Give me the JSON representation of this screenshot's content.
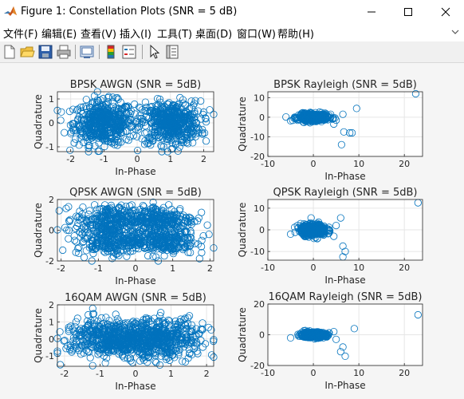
{
  "window": {
    "title": "Figure 1: Constellation Plots (SNR = 5 dB)",
    "controls": [
      "minimize",
      "maximize",
      "close"
    ]
  },
  "menubar": {
    "items": [
      "文件(F)",
      "编辑(E)",
      "查看(V)",
      "插入(I)",
      "工具(T)",
      "桌面(D)",
      "窗口(W)",
      "帮助(H)"
    ]
  },
  "toolbar": {
    "buttons": [
      "new-figure-icon",
      "open-file-icon",
      "save-icon",
      "print-icon",
      "link-plot-icon",
      "insert-colorbar-icon",
      "insert-legend-icon",
      "pointer-icon",
      "property-inspector-icon"
    ]
  },
  "colors": {
    "marker": "#0072bd",
    "axes_bg": "#ffffff",
    "figure_bg": "#f5f5f5",
    "grid": "#e6e6e6"
  },
  "chart_data": [
    {
      "type": "scatter",
      "title": "BPSK AWGN (SNR = 5dB)",
      "xlabel": "In-Phase",
      "ylabel": "Quadrature",
      "xlim": [
        -2.4,
        2.3
      ],
      "ylim": [
        -1.2,
        1.3
      ],
      "xticks": [
        -2,
        -1,
        0,
        1,
        2
      ],
      "yticks": [
        -1,
        0,
        1
      ],
      "grid": true,
      "clusters": [
        {
          "center": [
            -1,
            0
          ],
          "spread": [
            0.45,
            0.45
          ],
          "count": 500
        },
        {
          "center": [
            1,
            0
          ],
          "spread": [
            0.45,
            0.45
          ],
          "count": 500
        }
      ],
      "outliers": []
    },
    {
      "type": "scatter",
      "title": "BPSK Rayleigh (SNR = 5dB)",
      "xlabel": "In-Phase",
      "ylabel": "Quadrature",
      "xlim": [
        -10,
        24
      ],
      "ylim": [
        -20,
        13
      ],
      "xticks": [
        -10,
        0,
        10,
        20
      ],
      "yticks": [
        -20,
        -10,
        0,
        10
      ],
      "grid": true,
      "clusters": [
        {
          "center": [
            0,
            0
          ],
          "spread": [
            1.6,
            0.9
          ],
          "count": 400
        }
      ],
      "outliers": [
        [
          22.5,
          12
        ],
        [
          6.2,
          -14
        ],
        [
          8,
          -8
        ],
        [
          6.7,
          -7.5
        ],
        [
          9.5,
          4.5
        ],
        [
          8.5,
          -8
        ],
        [
          -5,
          -1.8
        ],
        [
          6.5,
          1.5
        ],
        [
          4.5,
          -3.5
        ],
        [
          5,
          -1.5
        ],
        [
          -3.5,
          -1
        ],
        [
          3.8,
          1.5
        ]
      ]
    },
    {
      "type": "scatter",
      "title": "QPSK AWGN (SNR = 5dB)",
      "xlabel": "In-Phase",
      "ylabel": "Quadrature",
      "xlim": [
        -2.1,
        2.1
      ],
      "ylim": [
        -2,
        2
      ],
      "xticks": [
        -2,
        -1,
        0,
        1,
        2
      ],
      "yticks": [
        -2,
        0,
        2
      ],
      "grid": true,
      "clusters": [
        {
          "center": [
            -0.7,
            0.7
          ],
          "spread": [
            0.45,
            0.45
          ],
          "count": 250
        },
        {
          "center": [
            0.7,
            0.7
          ],
          "spread": [
            0.45,
            0.45
          ],
          "count": 250
        },
        {
          "center": [
            -0.7,
            -0.7
          ],
          "spread": [
            0.45,
            0.45
          ],
          "count": 250
        },
        {
          "center": [
            0.7,
            -0.7
          ],
          "spread": [
            0.45,
            0.45
          ],
          "count": 250
        }
      ],
      "outliers": []
    },
    {
      "type": "scatter",
      "title": "QPSK Rayleigh (SNR = 5dB)",
      "xlabel": "In-Phase",
      "ylabel": "Quadrature",
      "xlim": [
        -10,
        24
      ],
      "ylim": [
        -14,
        14
      ],
      "xticks": [
        -10,
        0,
        10,
        20
      ],
      "yticks": [
        -10,
        0,
        10
      ],
      "grid": true,
      "clusters": [
        {
          "center": [
            0,
            0
          ],
          "spread": [
            1.4,
            1.3
          ],
          "count": 400
        }
      ],
      "outliers": [
        [
          23,
          12.5
        ],
        [
          6.5,
          -7.5
        ],
        [
          7,
          -10
        ],
        [
          6.5,
          -12.5
        ],
        [
          6,
          5.5
        ],
        [
          -0.5,
          5.5
        ],
        [
          5,
          2
        ],
        [
          -5,
          -2
        ],
        [
          4.5,
          -3
        ],
        [
          -3.5,
          2
        ]
      ]
    },
    {
      "type": "scatter",
      "title": "16QAM AWGN (SNR = 5dB)",
      "xlabel": "In-Phase",
      "ylabel": "Quadrature",
      "xlim": [
        -2.2,
        2.2
      ],
      "ylim": [
        -1.6,
        2
      ],
      "xticks": [
        -2,
        -1,
        0,
        1,
        2
      ],
      "yticks": [
        -1,
        0,
        1,
        2
      ],
      "grid": true,
      "clusters": [
        {
          "center": [
            -1,
            0.3
          ],
          "spread": [
            0.5,
            0.45
          ],
          "count": 120
        },
        {
          "center": [
            -0.3,
            0.3
          ],
          "spread": [
            0.5,
            0.45
          ],
          "count": 120
        },
        {
          "center": [
            0.3,
            0.3
          ],
          "spread": [
            0.5,
            0.45
          ],
          "count": 120
        },
        {
          "center": [
            1,
            0.3
          ],
          "spread": [
            0.5,
            0.45
          ],
          "count": 120
        },
        {
          "center": [
            -1,
            -0.3
          ],
          "spread": [
            0.5,
            0.45
          ],
          "count": 120
        },
        {
          "center": [
            -0.3,
            -0.3
          ],
          "spread": [
            0.5,
            0.45
          ],
          "count": 120
        },
        {
          "center": [
            0.3,
            -0.3
          ],
          "spread": [
            0.5,
            0.45
          ],
          "count": 120
        },
        {
          "center": [
            1,
            -0.3
          ],
          "spread": [
            0.5,
            0.45
          ],
          "count": 120
        }
      ],
      "outliers": []
    },
    {
      "type": "scatter",
      "title": "16QAM Rayleigh (SNR = 5dB)",
      "xlabel": "In-Phase",
      "ylabel": "Quadrature",
      "xlim": [
        -10,
        24
      ],
      "ylim": [
        -20,
        20
      ],
      "xticks": [
        -10,
        0,
        10,
        20
      ],
      "yticks": [
        -20,
        0,
        20
      ],
      "grid": true,
      "clusters": [
        {
          "center": [
            0,
            0
          ],
          "spread": [
            1.4,
            0.9
          ],
          "count": 400
        }
      ],
      "outliers": [
        [
          23,
          13
        ],
        [
          6,
          -11
        ],
        [
          6.5,
          -8
        ],
        [
          9,
          4
        ],
        [
          7,
          -14
        ],
        [
          -5,
          -2
        ],
        [
          4.5,
          2
        ],
        [
          5,
          -3
        ]
      ]
    }
  ]
}
